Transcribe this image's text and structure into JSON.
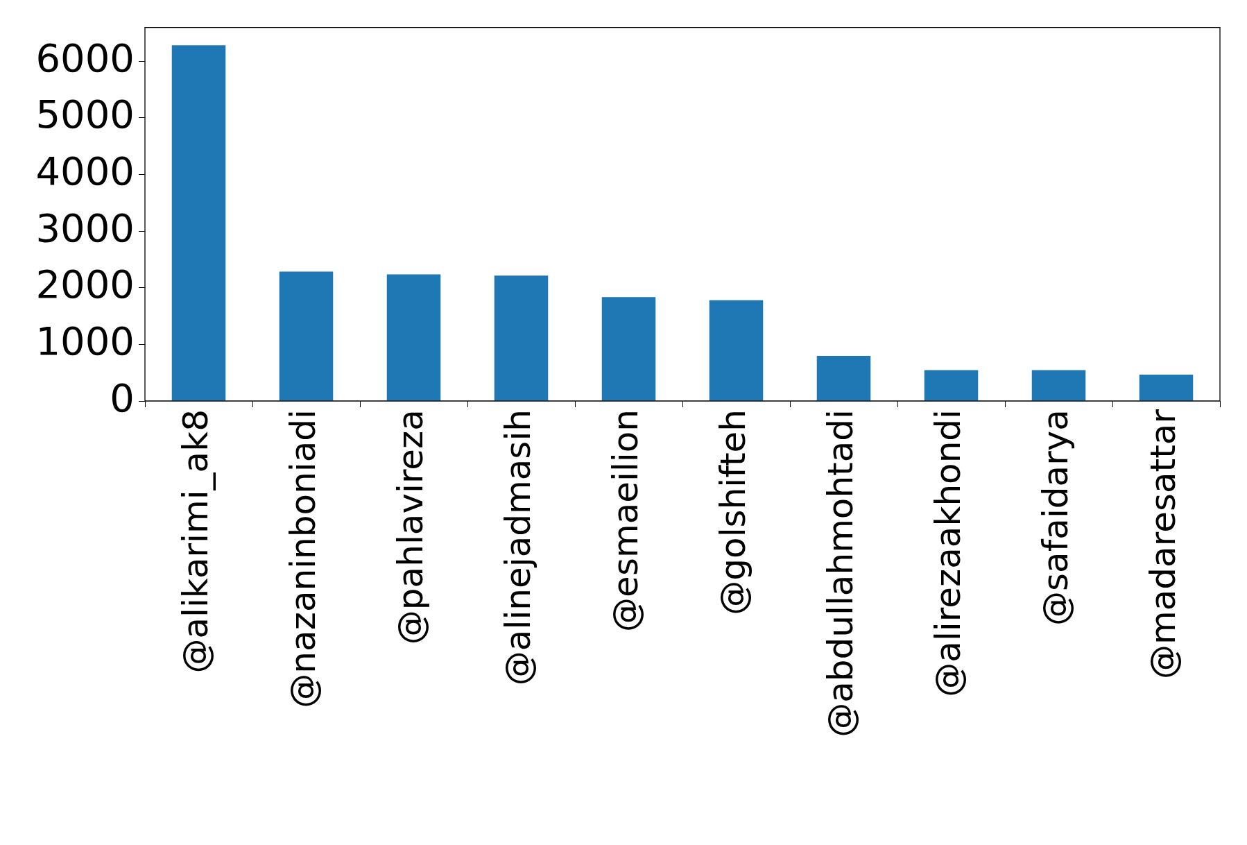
{
  "chart_data": {
    "type": "bar",
    "categories": [
      "@alikarimi_ak8",
      "@nazaninboniadi",
      "@pahlavireza",
      "@alinejadmasih",
      "@esmaeilion",
      "@golshifteh",
      "@abdullahmohtadi",
      "@alirezaakhondi",
      "@safaidarya",
      "@madaresattar"
    ],
    "values": [
      6280,
      2285,
      2236,
      2215,
      1835,
      1778,
      796,
      545,
      545,
      466
    ],
    "color": "#1f77b4",
    "ylim": [
      0,
      6594
    ],
    "yticks": [
      0,
      1000,
      2000,
      3000,
      4000,
      5000,
      6000
    ],
    "grid": false,
    "legend": false
  }
}
